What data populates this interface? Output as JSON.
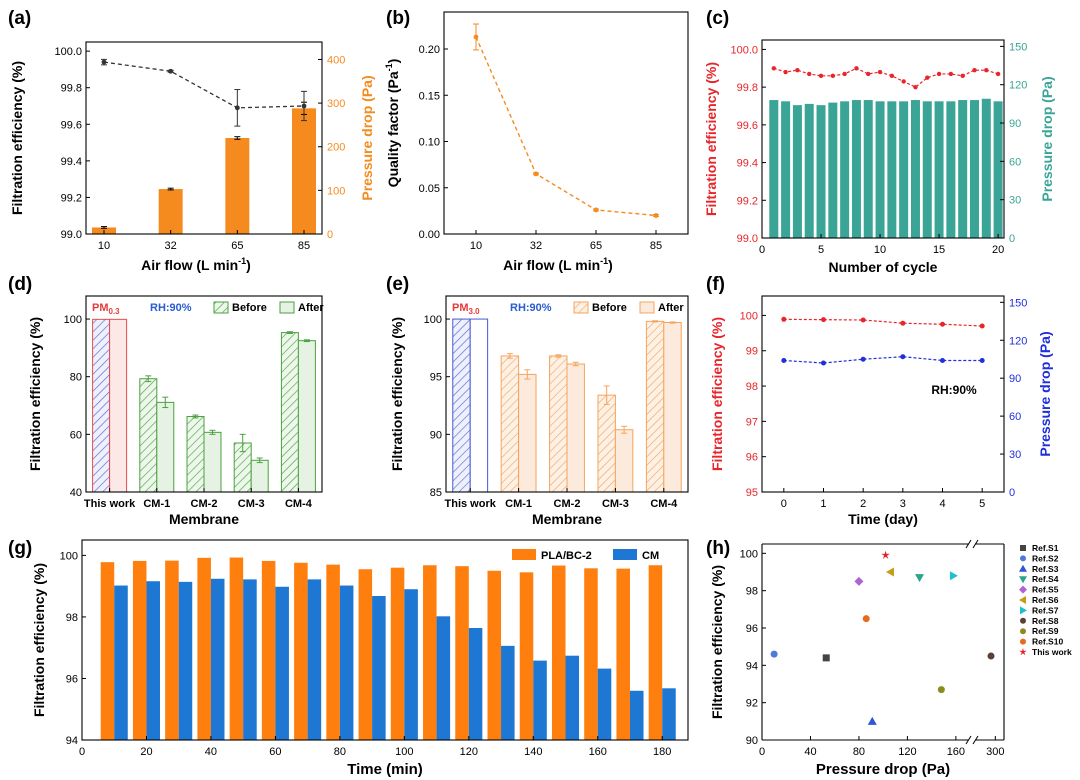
{
  "figure": {
    "panels": [
      "(a)",
      "(b)",
      "(c)",
      "(d)",
      "(e)",
      "(f)",
      "(g)",
      "(h)"
    ]
  },
  "colors": {
    "orange": "#f58b1f",
    "dash": "#333333",
    "teal": "#3aa597",
    "red": "#e8252b",
    "blue": "#1f2fdc",
    "green": "#4aa13f",
    "greenfill": "#e6f2e3",
    "orangefill": "#fcebdc",
    "pmred": "#e63a3a",
    "mpblue": "#2a5cd1",
    "bar_orange": "#ff7f0e",
    "bar_blue": "#1f77d4"
  },
  "chart_data": [
    {
      "panel": "(a)",
      "type": "bar+line",
      "xlabel": "Air flow (L min",
      "xlabel_sup": "-1",
      "xlabel_end": ")",
      "ylabel": "Filtration efficiency (%)",
      "y2label": "Pressure drop (Pa)",
      "categories": [
        "10",
        "32",
        "65",
        "85"
      ],
      "ylim": [
        99.0,
        100.05
      ],
      "yticks": [
        "99.0",
        "99.2",
        "99.4",
        "99.6",
        "99.8",
        "100.0"
      ],
      "y2lim": [
        0,
        440
      ],
      "y2ticks": [
        "0",
        "100",
        "200",
        "300",
        "400"
      ],
      "series": [
        {
          "name": "Filtration efficiency",
          "axis": "left",
          "kind": "line",
          "values": [
            99.94,
            99.89,
            99.69,
            99.7
          ],
          "err": [
            0.015,
            0.005,
            0.1,
            0.08
          ]
        },
        {
          "name": "Pressure drop",
          "axis": "right",
          "kind": "bar",
          "values": [
            15,
            103,
            220,
            288
          ],
          "err": [
            2,
            2,
            3,
            14
          ]
        }
      ]
    },
    {
      "panel": "(b)",
      "type": "line",
      "xlabel": "Air flow (L min",
      "xlabel_sup": "-1",
      "xlabel_end": ")",
      "ylabel": "Quality factor (Pa",
      "ylabel_sup": "-1",
      "ylabel_end": ")",
      "categories": [
        "10",
        "32",
        "65",
        "85"
      ],
      "ylim": [
        0.0,
        0.24
      ],
      "yticks": [
        "0.00",
        "0.05",
        "0.10",
        "0.15",
        "0.20"
      ],
      "values": [
        0.213,
        0.065,
        0.026,
        0.02
      ],
      "err": [
        0.014,
        0.001,
        0.001,
        0.001
      ]
    },
    {
      "panel": "(c)",
      "type": "bar+line",
      "xlabel": "Number of cycle",
      "ylabel": "Filtration efficiency (%)",
      "y2label": "Pressure drop (Pa)",
      "xlim": [
        0,
        20.5
      ],
      "xticks": [
        "0",
        "5",
        "10",
        "15",
        "20"
      ],
      "ylim": [
        99.0,
        100.05
      ],
      "yticks": [
        "99.0",
        "99.2",
        "99.4",
        "99.6",
        "99.8",
        "100.0"
      ],
      "y2lim": [
        0,
        155
      ],
      "y2ticks": [
        "0",
        "30",
        "60",
        "90",
        "120",
        "150"
      ],
      "x": [
        1,
        2,
        3,
        4,
        5,
        6,
        7,
        8,
        9,
        10,
        11,
        12,
        13,
        14,
        15,
        16,
        17,
        18,
        19,
        20
      ],
      "series": [
        {
          "name": "Filtration efficiency",
          "axis": "left",
          "kind": "line",
          "values": [
            99.9,
            99.88,
            99.89,
            99.87,
            99.86,
            99.86,
            99.87,
            99.9,
            99.87,
            99.88,
            99.86,
            99.83,
            99.8,
            99.85,
            99.87,
            99.87,
            99.86,
            99.89,
            99.89,
            99.87
          ]
        },
        {
          "name": "Pressure drop",
          "axis": "right",
          "kind": "bar",
          "values": [
            108,
            107,
            104,
            105,
            104,
            106,
            107,
            108,
            108,
            107,
            107,
            107,
            108,
            107,
            107,
            107,
            108,
            108,
            109,
            107
          ]
        }
      ]
    },
    {
      "panel": "(d)",
      "type": "bar",
      "xlabel": "Membrane",
      "ylabel": "Filtration efficiency (%)",
      "categories": [
        "This work",
        "CM-1",
        "CM-2",
        "CM-3",
        "CM-4"
      ],
      "ylim": [
        40,
        108
      ],
      "yticks": [
        "40",
        "60",
        "80",
        "100"
      ],
      "annot_pm": "PM",
      "annot_pm_sub": "0.3",
      "annot_rh": "RH:90%",
      "series": [
        {
          "name": "Before",
          "values": [
            99.9,
            79.3,
            66.2,
            57.0,
            95.3
          ],
          "err": [
            0,
            1.0,
            0.5,
            3.0,
            0.3
          ]
        },
        {
          "name": "After",
          "values": [
            99.9,
            71.1,
            60.7,
            51.0,
            92.5
          ],
          "err": [
            0,
            1.8,
            0.7,
            0.8,
            0.3
          ]
        }
      ]
    },
    {
      "panel": "(e)",
      "type": "bar",
      "xlabel": "Membrane",
      "ylabel": "Filtration efficiency (%)",
      "categories": [
        "This work",
        "CM-1",
        "CM-2",
        "CM-3",
        "CM-4"
      ],
      "ylim": [
        85,
        102
      ],
      "yticks": [
        "85",
        "90",
        "95",
        "100"
      ],
      "annot_pm": "PM",
      "annot_pm_sub": "3.0",
      "annot_rh": "RH:90%",
      "series": [
        {
          "name": "Before",
          "values": [
            100.0,
            96.8,
            96.8,
            93.4,
            99.8
          ],
          "err": [
            0,
            0.2,
            0.1,
            0.8,
            0.05
          ]
        },
        {
          "name": "After",
          "values": [
            100.0,
            95.2,
            96.1,
            90.4,
            99.7
          ],
          "err": [
            0,
            0.4,
            0.15,
            0.3,
            0.05
          ]
        }
      ]
    },
    {
      "panel": "(f)",
      "type": "line",
      "xlabel": "Time (day)",
      "ylabel": "Filtration efficiency (%)",
      "y2label": "Pressure drop (Pa)",
      "annot": "RH:90%",
      "x": [
        0,
        1,
        2,
        3,
        4,
        5
      ],
      "xlim": [
        -0.55,
        5.55
      ],
      "xticks": [
        "0",
        "1",
        "2",
        "3",
        "4",
        "5"
      ],
      "ylim": [
        95,
        100.55
      ],
      "yticks": [
        "95",
        "96",
        "97",
        "98",
        "99",
        "100"
      ],
      "y2lim": [
        0,
        155
      ],
      "y2ticks": [
        "0",
        "30",
        "60",
        "90",
        "120",
        "150"
      ],
      "series": [
        {
          "name": "Filtration efficiency",
          "axis": "left",
          "values": [
            99.89,
            99.88,
            99.87,
            99.78,
            99.75,
            99.7
          ]
        },
        {
          "name": "Pressure drop",
          "axis": "right",
          "values": [
            104,
            102,
            105,
            107,
            104,
            104
          ]
        }
      ]
    },
    {
      "panel": "(g)",
      "type": "bar",
      "xlabel": "Time (min)",
      "ylabel": "Filtration efficiency (%)",
      "xlim": [
        0,
        188
      ],
      "xticks": [
        "0",
        "20",
        "40",
        "60",
        "80",
        "100",
        "120",
        "140",
        "160",
        "180"
      ],
      "ylim": [
        94,
        100.5
      ],
      "yticks": [
        "94",
        "96",
        "98",
        "100"
      ],
      "x": [
        10,
        20,
        30,
        40,
        50,
        60,
        70,
        80,
        90,
        100,
        110,
        120,
        130,
        140,
        150,
        160,
        170,
        180
      ],
      "series": [
        {
          "name": "PLA/BC-2",
          "values": [
            99.78,
            99.82,
            99.83,
            99.92,
            99.93,
            99.82,
            99.76,
            99.7,
            99.55,
            99.6,
            99.68,
            99.65,
            99.5,
            99.45,
            99.67,
            99.58,
            99.57,
            99.68
          ]
        },
        {
          "name": "CM",
          "values": [
            99.02,
            99.16,
            99.14,
            99.24,
            99.22,
            98.98,
            99.22,
            99.02,
            98.68,
            98.9,
            98.02,
            97.64,
            97.06,
            96.58,
            96.74,
            96.32,
            95.6,
            95.68
          ]
        }
      ]
    },
    {
      "panel": "(h)",
      "type": "scatter",
      "xlabel": "Pressure drop (Pa)",
      "ylabel": "Filtration efficiency (%)",
      "xticks": [
        "0",
        "40",
        "80",
        "120",
        "160",
        "300"
      ],
      "ylim": [
        90,
        100.5
      ],
      "yticks": [
        "90",
        "92",
        "94",
        "96",
        "98",
        "100"
      ],
      "series": [
        {
          "name": "Ref.S1",
          "x": 53,
          "y": 94.4
        },
        {
          "name": "Ref.S2",
          "x": 10,
          "y": 94.6
        },
        {
          "name": "Ref.S3",
          "x": 91,
          "y": 91.0
        },
        {
          "name": "Ref.S4",
          "x": 130,
          "y": 98.7
        },
        {
          "name": "Ref.S5",
          "x": 80,
          "y": 98.5
        },
        {
          "name": "Ref.S6",
          "x": 106,
          "y": 99.0
        },
        {
          "name": "Ref.S7",
          "x": 158,
          "y": 98.8
        },
        {
          "name": "Ref.S8",
          "x": 295,
          "y": 94.5
        },
        {
          "name": "Ref.S9",
          "x": 148,
          "y": 92.7
        },
        {
          "name": "Ref.S10",
          "x": 86,
          "y": 96.5
        },
        {
          "name": "This work",
          "x": 102,
          "y": 99.9
        }
      ]
    }
  ]
}
